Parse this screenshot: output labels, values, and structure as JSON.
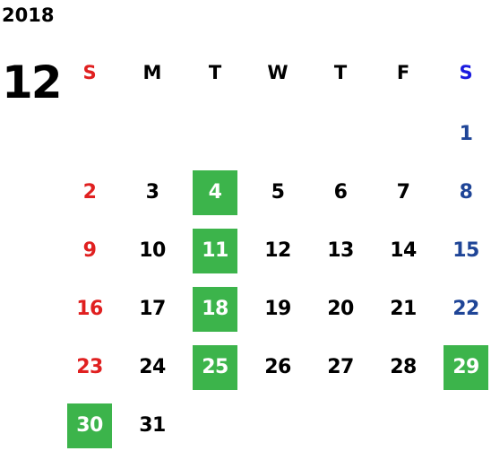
{
  "calendar": {
    "year": "2018",
    "month": "12",
    "weekdays": [
      "S",
      "M",
      "T",
      "W",
      "T",
      "F",
      "S"
    ],
    "weekday_colors": [
      "#e02020",
      "#000000",
      "#000000",
      "#000000",
      "#000000",
      "#000000",
      "#1a1adf"
    ],
    "day_colors": [
      "#e02020",
      "#000000",
      "#000000",
      "#000000",
      "#000000",
      "#000000",
      "#1f4597"
    ],
    "highlight_color": "#3cb44b",
    "first_weekday_index": 6,
    "days_in_month": 31,
    "highlighted_days": [
      4,
      11,
      18,
      25,
      29,
      30
    ]
  }
}
